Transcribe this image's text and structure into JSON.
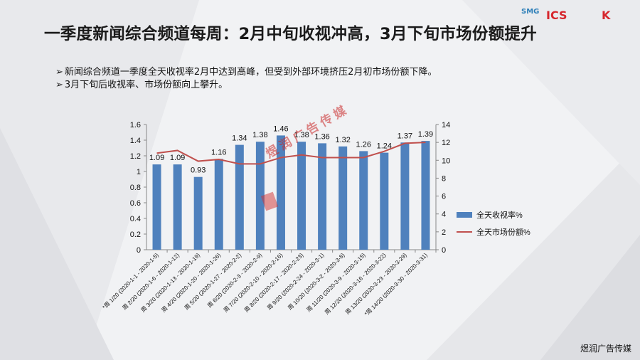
{
  "slide": {
    "title": "一季度新闻综合频道每周：2月中旬收视冲高，3月下旬市场份额提升",
    "bullets": [
      "新闻综合频道一季度全天收视率2月中达到高峰，但受到外部环境挤压2月初市场份额下降。",
      "3月下旬后收视率、市场份额向上攀升。"
    ],
    "bullet_marker": "➢",
    "logos": {
      "smg": "SMG",
      "ics": "ICS",
      "k": "K",
      "watermark": "煜润广告传媒"
    },
    "footer": "煜润广告传媒"
  },
  "colors": {
    "bar": "#4f81bd",
    "line": "#c0504d",
    "title": "#1a1a1a"
  },
  "chart_data": {
    "type": "bar",
    "categories": [
      "周 1/20 (2020-1-1 - 2020-1-5)",
      "周 2/20 (2020-1-6 - 2020-1-12)",
      "周 3/20 (2020-1-13 - 2020-1-19)",
      "周 4/20 (2020-1-20 - 2020-1-26)",
      "周 5/20 (2020-1-27 - 2020-2-2)",
      "周 6/20 (2020-2-3 - 2020-2-9)",
      "周 7/20 (2020-2-10 - 2020-2-16)",
      "周 8/20 (2020-2-17 - 2020-2-23)",
      "周 9/20 (2020-2-24 - 2020-3-1)",
      "周 10/20 (2020-3-2 - 2020-3-8)",
      "周 11/20 (2020-3-9 - 2020-3-15)",
      "周 12/20 (2020-3-16 - 2020-3-22)",
      "周 13/20 (2020-3-23 - 2020-3-29)",
      "周 14/20 (2020-3-30 - 2020-3-31)"
    ],
    "category_prefixes": [
      "*",
      "",
      "",
      "",
      "",
      "",
      "",
      "",
      "",
      "",
      "",
      "",
      "",
      "*"
    ],
    "series": [
      {
        "name": "全天收视率%",
        "type": "bar",
        "axis": "left",
        "values": [
          1.09,
          1.09,
          0.93,
          1.16,
          1.34,
          1.38,
          1.46,
          1.38,
          1.36,
          1.32,
          1.26,
          1.24,
          1.37,
          1.39
        ],
        "labels": [
          "1.09",
          "1.09",
          "0.93",
          "1.16",
          "1.34",
          "1.38",
          "1.46",
          "1.38",
          "1.36",
          "1.32",
          "1.26",
          "1.24",
          "1.37",
          "1.39"
        ]
      },
      {
        "name": "全天市场份额%",
        "type": "line",
        "axis": "right",
        "values": [
          10.8,
          11.1,
          9.9,
          10.1,
          9.6,
          9.6,
          10.3,
          10.6,
          10.3,
          10.3,
          10.3,
          11.0,
          11.9,
          12.0
        ]
      }
    ],
    "y_left": {
      "min": 0,
      "max": 1.6,
      "ticks": [
        "0",
        "0.2",
        "0.4",
        "0.6",
        "0.8",
        "1",
        "1.2",
        "1.4",
        "1.6"
      ]
    },
    "y_right": {
      "min": 0,
      "max": 14,
      "ticks": [
        "0",
        "2",
        "4",
        "6",
        "8",
        "10",
        "12",
        "14"
      ]
    },
    "grid": false,
    "legend_position": "right"
  }
}
